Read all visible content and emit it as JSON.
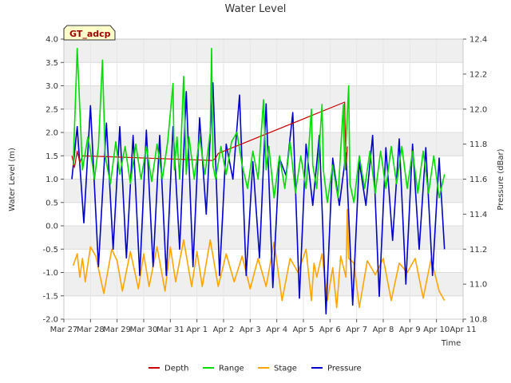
{
  "chart_data": {
    "type": "line",
    "title": "Water Level",
    "xlabel": "Time",
    "ylabel": "Water Level (m)",
    "y2label": "Pressure (dBar)",
    "badge": "GT_adcp",
    "ylim": [
      -2.0,
      4.0
    ],
    "y2lim": [
      10.8,
      12.4
    ],
    "xlim": [
      0,
      15
    ],
    "yticks": [
      "4.0",
      "3.5",
      "3.0",
      "2.5",
      "2.0",
      "1.5",
      "1.0",
      "0.5",
      "0.0",
      "-0.5",
      "-1.0",
      "-1.5",
      "-2.0"
    ],
    "ytick_values": [
      4.0,
      3.5,
      3.0,
      2.5,
      2.0,
      1.5,
      1.0,
      0.5,
      0.0,
      -0.5,
      -1.0,
      -1.5,
      -2.0
    ],
    "y2ticks": [
      "12.4",
      "12.2",
      "12.0",
      "11.8",
      "11.6",
      "11.4",
      "11.2",
      "11.0",
      "10.8"
    ],
    "y2tick_values": [
      12.4,
      12.2,
      12.0,
      11.8,
      11.6,
      11.4,
      11.2,
      11.0,
      10.8
    ],
    "xticks": [
      "Mar 27",
      "Mar 28",
      "Mar 29",
      "Mar 30",
      "Mar 31",
      "Apr 1",
      "Apr 2",
      "Apr 3",
      "Apr 4",
      "Apr 5",
      "Apr 6",
      "Apr 7",
      "Apr 8",
      "Apr 9",
      "Apr 10",
      "Apr 11"
    ],
    "xtick_values": [
      0,
      1,
      2,
      3,
      4,
      5,
      6,
      7,
      8,
      9,
      10,
      11,
      12,
      13,
      14,
      15
    ],
    "grid": true,
    "legend_position": "bottom-center",
    "series": [
      {
        "name": "Depth",
        "color": "#cc0000",
        "axis": "left",
        "x": [
          0.3,
          0.4,
          0.5,
          0.6,
          0.7,
          5.6,
          5.7,
          5.8,
          10.55,
          10.6,
          10.65
        ],
        "values": [
          1.5,
          1.25,
          1.6,
          1.35,
          1.5,
          1.4,
          1.45,
          1.55,
          2.65,
          1.2,
          1.7
        ]
      },
      {
        "name": "Range",
        "color": "#00dd00",
        "axis": "left",
        "x": [
          0.35,
          0.5,
          0.7,
          0.9,
          1.0,
          1.15,
          1.3,
          1.45,
          1.55,
          1.75,
          1.95,
          2.1,
          2.3,
          2.5,
          2.7,
          2.9,
          3.1,
          3.3,
          3.5,
          3.7,
          3.9,
          4.1,
          4.15,
          4.25,
          4.35,
          4.5,
          4.6,
          4.7,
          4.9,
          5.1,
          5.3,
          5.5,
          5.55,
          5.6,
          5.7,
          5.9,
          6.1,
          6.3,
          6.5,
          6.7,
          6.9,
          7.1,
          7.3,
          7.5,
          7.6,
          7.7,
          7.9,
          8.1,
          8.3,
          8.5,
          8.7,
          8.9,
          9.1,
          9.3,
          9.35,
          9.5,
          9.7,
          9.75,
          9.9,
          10.1,
          10.3,
          10.5,
          10.55,
          10.7,
          10.75,
          10.9,
          11.1,
          11.3,
          11.5,
          11.7,
          11.9,
          12.1,
          12.3,
          12.5,
          12.7,
          12.9,
          13.1,
          13.3,
          13.5,
          13.7,
          13.9,
          14.1,
          14.3
        ],
        "values": [
          1.3,
          3.8,
          1.2,
          1.9,
          1.6,
          1.0,
          1.7,
          3.55,
          1.5,
          0.9,
          1.8,
          1.1,
          1.7,
          0.9,
          1.75,
          1.0,
          1.7,
          0.95,
          1.75,
          1.0,
          1.8,
          3.05,
          1.2,
          1.9,
          1.0,
          3.2,
          1.1,
          1.9,
          1.0,
          1.9,
          1.1,
          2.0,
          3.8,
          1.3,
          1.0,
          1.7,
          1.1,
          1.8,
          2.0,
          1.3,
          0.8,
          1.6,
          1.0,
          2.7,
          1.2,
          1.7,
          0.6,
          1.5,
          0.8,
          1.8,
          0.7,
          1.5,
          0.8,
          2.5,
          1.3,
          0.8,
          2.6,
          1.2,
          0.5,
          1.3,
          0.6,
          2.6,
          1.2,
          3.0,
          0.9,
          0.5,
          1.5,
          0.8,
          1.6,
          0.7,
          1.6,
          0.8,
          1.7,
          0.9,
          1.7,
          0.8,
          1.6,
          0.7,
          1.6,
          0.7,
          1.5,
          0.6,
          1.1
        ]
      },
      {
        "name": "Stage",
        "color": "#ffa500",
        "axis": "left",
        "x": [
          0.35,
          0.5,
          0.6,
          0.7,
          0.8,
          1.0,
          1.2,
          1.5,
          1.8,
          2.0,
          2.2,
          2.5,
          2.8,
          3.0,
          3.2,
          3.5,
          3.8,
          4.0,
          4.2,
          4.5,
          4.8,
          5.0,
          5.2,
          5.5,
          5.8,
          6.1,
          6.4,
          6.7,
          7.0,
          7.3,
          7.6,
          7.9,
          8.2,
          8.5,
          8.8,
          9.1,
          9.3,
          9.4,
          9.5,
          9.7,
          9.9,
          10.1,
          10.25,
          10.4,
          10.6,
          10.65,
          10.7,
          10.9,
          11.1,
          11.4,
          11.7,
          12.0,
          12.3,
          12.6,
          12.9,
          13.2,
          13.5,
          13.8,
          14.1,
          14.3
        ],
        "values": [
          -0.85,
          -0.6,
          -1.1,
          -0.7,
          -1.2,
          -0.45,
          -0.65,
          -1.45,
          -0.5,
          -0.75,
          -1.4,
          -0.55,
          -1.35,
          -0.6,
          -1.3,
          -0.45,
          -1.4,
          -0.45,
          -1.2,
          -0.3,
          -1.3,
          -0.55,
          -1.3,
          -0.3,
          -1.3,
          -0.6,
          -1.2,
          -0.65,
          -1.35,
          -0.7,
          -1.3,
          -0.35,
          -1.6,
          -0.7,
          -1.0,
          -0.5,
          -1.6,
          -0.8,
          -1.1,
          -0.6,
          -1.6,
          -0.9,
          -1.75,
          -0.65,
          -1.1,
          0.35,
          -0.7,
          -0.8,
          -1.75,
          -0.75,
          -1.05,
          -0.7,
          -1.6,
          -0.8,
          -1.0,
          -0.7,
          -1.55,
          -0.7,
          -1.4,
          -1.6
        ]
      },
      {
        "name": "Pressure",
        "color": "#0000cc",
        "axis": "right",
        "x": [
          0.3,
          0.5,
          0.75,
          1.0,
          1.3,
          1.6,
          1.85,
          2.1,
          2.35,
          2.6,
          2.85,
          3.1,
          3.35,
          3.6,
          3.85,
          4.1,
          4.35,
          4.6,
          4.85,
          5.1,
          5.35,
          5.6,
          5.85,
          6.1,
          6.35,
          6.6,
          6.85,
          7.1,
          7.35,
          7.6,
          7.85,
          8.1,
          8.35,
          8.6,
          8.85,
          9.1,
          9.35,
          9.6,
          9.85,
          10.1,
          10.35,
          10.6,
          10.85,
          11.1,
          11.35,
          11.6,
          11.85,
          12.1,
          12.35,
          12.6,
          12.85,
          13.1,
          13.35,
          13.6,
          13.85,
          14.1,
          14.3
        ],
        "values": [
          11.6,
          11.9,
          11.35,
          12.02,
          11.1,
          11.92,
          11.2,
          11.9,
          11.15,
          11.85,
          11.05,
          11.88,
          11.1,
          11.85,
          11.05,
          11.9,
          11.2,
          12.1,
          11.1,
          11.95,
          11.4,
          12.15,
          11.05,
          11.8,
          11.6,
          12.08,
          11.05,
          11.7,
          11.15,
          12.03,
          10.98,
          11.72,
          11.62,
          11.98,
          10.92,
          11.8,
          11.45,
          11.85,
          10.83,
          11.72,
          11.45,
          11.75,
          10.88,
          11.7,
          11.45,
          11.85,
          10.93,
          11.78,
          11.25,
          11.83,
          11.0,
          11.8,
          11.2,
          11.78,
          11.05,
          11.72,
          11.2
        ]
      }
    ]
  }
}
